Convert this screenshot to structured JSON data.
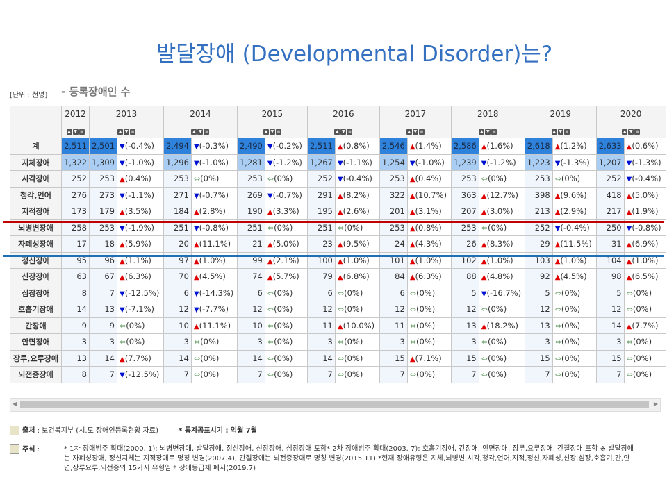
{
  "title": "발달장애 (Developmental Disorder)는?",
  "unit": "[단위 : 천명]",
  "subtitle": "- 등록장애인 수",
  "colors": {
    "title": "#3470c0",
    "total_cell": "#2f82dc",
    "sub_cell": "#a9cdf3",
    "up": "#e00000",
    "down": "#0010d0",
    "same": "#7aa87a",
    "red_line": "#c00000",
    "blue_line": "#1f6fb5"
  },
  "sort_icons": [
    "sort-up-icon",
    "sort-down-icon",
    "sort-list-icon"
  ],
  "years": [
    "2012",
    "2013",
    "2014",
    "2015",
    "2016",
    "2017",
    "2018",
    "2019",
    "2020"
  ],
  "rows": [
    {
      "label": "계",
      "values": [
        "2,511",
        "2,501",
        "2,494",
        "2,490",
        "2,511",
        "2,546",
        "2,586",
        "2,618",
        "2,633"
      ],
      "changes": [
        [
          "down",
          "(-0.4%)"
        ],
        [
          "down",
          "(-0.3%)"
        ],
        [
          "down",
          "(-0.2%)"
        ],
        [
          "up",
          "(0.8%)"
        ],
        [
          "up",
          "(1.4%)"
        ],
        [
          "up",
          "(1.6%)"
        ],
        [
          "up",
          "(1.2%)"
        ],
        [
          "up",
          "(0.6%)"
        ]
      ]
    },
    {
      "label": "지체장애",
      "values": [
        "1,322",
        "1,309",
        "1,296",
        "1,281",
        "1,267",
        "1,254",
        "1,239",
        "1,223",
        "1,207"
      ],
      "changes": [
        [
          "down",
          "(-1.0%)"
        ],
        [
          "down",
          "(-1.0%)"
        ],
        [
          "down",
          "(-1.2%)"
        ],
        [
          "down",
          "(-1.1%)"
        ],
        [
          "down",
          "(-1.0%)"
        ],
        [
          "down",
          "(-1.2%)"
        ],
        [
          "down",
          "(-1.3%)"
        ],
        [
          "down",
          "(-1.3%)"
        ]
      ]
    },
    {
      "label": "시각장애",
      "values": [
        "252",
        "253",
        "253",
        "253",
        "252",
        "253",
        "253",
        "253",
        "252"
      ],
      "changes": [
        [
          "up",
          "(0.4%)"
        ],
        [
          "same",
          "(0%)"
        ],
        [
          "same",
          "(0%)"
        ],
        [
          "down",
          "(-0.4%)"
        ],
        [
          "up",
          "(0.4%)"
        ],
        [
          "same",
          "(0%)"
        ],
        [
          "same",
          "(0%)"
        ],
        [
          "down",
          "(-0.4%)"
        ]
      ]
    },
    {
      "label": "청각,언어",
      "values": [
        "276",
        "273",
        "271",
        "269",
        "291",
        "322",
        "363",
        "398",
        "418"
      ],
      "changes": [
        [
          "down",
          "(-1.1%)"
        ],
        [
          "down",
          "(-0.7%)"
        ],
        [
          "down",
          "(-0.7%)"
        ],
        [
          "up",
          "(8.2%)"
        ],
        [
          "up",
          "(10.7%)"
        ],
        [
          "up",
          "(12.7%)"
        ],
        [
          "up",
          "(9.6%)"
        ],
        [
          "up",
          "(5.0%)"
        ]
      ]
    },
    {
      "label": "지적장애",
      "values": [
        "173",
        "179",
        "184",
        "190",
        "195",
        "201",
        "207",
        "213",
        "217"
      ],
      "changes": [
        [
          "up",
          "(3.5%)"
        ],
        [
          "up",
          "(2.8%)"
        ],
        [
          "up",
          "(3.3%)"
        ],
        [
          "up",
          "(2.6%)"
        ],
        [
          "up",
          "(3.1%)"
        ],
        [
          "up",
          "(3.0%)"
        ],
        [
          "up",
          "(2.9%)"
        ],
        [
          "up",
          "(1.9%)"
        ]
      ]
    },
    {
      "label": "뇌병변장애",
      "values": [
        "258",
        "253",
        "251",
        "251",
        "251",
        "253",
        "253",
        "252",
        "250"
      ],
      "changes": [
        [
          "down",
          "(-1.9%)"
        ],
        [
          "down",
          "(-0.8%)"
        ],
        [
          "same",
          "(0%)"
        ],
        [
          "same",
          "(0%)"
        ],
        [
          "up",
          "(0.8%)"
        ],
        [
          "same",
          "(0%)"
        ],
        [
          "down",
          "(-0.4%)"
        ],
        [
          "down",
          "(-0.8%)"
        ]
      ]
    },
    {
      "label": "자폐성장애",
      "values": [
        "17",
        "18",
        "20",
        "21",
        "23",
        "24",
        "26",
        "29",
        "31"
      ],
      "changes": [
        [
          "up",
          "(5.9%)"
        ],
        [
          "up",
          "(11.1%)"
        ],
        [
          "up",
          "(5.0%)"
        ],
        [
          "up",
          "(9.5%)"
        ],
        [
          "up",
          "(4.3%)"
        ],
        [
          "up",
          "(8.3%)"
        ],
        [
          "up",
          "(11.5%)"
        ],
        [
          "up",
          "(6.9%)"
        ]
      ]
    },
    {
      "label": "정신장애",
      "values": [
        "95",
        "96",
        "97",
        "99",
        "100",
        "101",
        "102",
        "103",
        "104"
      ],
      "changes": [
        [
          "up",
          "(1.1%)"
        ],
        [
          "up",
          "(1.0%)"
        ],
        [
          "up",
          "(2.1%)"
        ],
        [
          "up",
          "(1.0%)"
        ],
        [
          "up",
          "(1.0%)"
        ],
        [
          "up",
          "(1.0%)"
        ],
        [
          "up",
          "(1.0%)"
        ],
        [
          "up",
          "(1.0%)"
        ]
      ]
    },
    {
      "label": "신장장애",
      "values": [
        "63",
        "67",
        "70",
        "74",
        "79",
        "84",
        "88",
        "92",
        "98"
      ],
      "changes": [
        [
          "up",
          "(6.3%)"
        ],
        [
          "up",
          "(4.5%)"
        ],
        [
          "up",
          "(5.7%)"
        ],
        [
          "up",
          "(6.8%)"
        ],
        [
          "up",
          "(6.3%)"
        ],
        [
          "up",
          "(4.8%)"
        ],
        [
          "up",
          "(4.5%)"
        ],
        [
          "up",
          "(6.5%)"
        ]
      ]
    },
    {
      "label": "심장장애",
      "values": [
        "8",
        "7",
        "6",
        "6",
        "6",
        "6",
        "5",
        "5",
        "5"
      ],
      "changes": [
        [
          "down",
          "(-12.5%)"
        ],
        [
          "down",
          "(-14.3%)"
        ],
        [
          "same",
          "(0%)"
        ],
        [
          "same",
          "(0%)"
        ],
        [
          "same",
          "(0%)"
        ],
        [
          "down",
          "(-16.7%)"
        ],
        [
          "same",
          "(0%)"
        ],
        [
          "same",
          "(0%)"
        ]
      ]
    },
    {
      "label": "호흡기장애",
      "values": [
        "14",
        "13",
        "12",
        "12",
        "12",
        "12",
        "12",
        "12",
        "12"
      ],
      "changes": [
        [
          "down",
          "(-7.1%)"
        ],
        [
          "down",
          "(-7.7%)"
        ],
        [
          "same",
          "(0%)"
        ],
        [
          "same",
          "(0%)"
        ],
        [
          "same",
          "(0%)"
        ],
        [
          "same",
          "(0%)"
        ],
        [
          "same",
          "(0%)"
        ],
        [
          "same",
          "(0%)"
        ]
      ]
    },
    {
      "label": "간장애",
      "values": [
        "9",
        "9",
        "10",
        "10",
        "11",
        "11",
        "13",
        "13",
        "14"
      ],
      "changes": [
        [
          "same",
          "(0%)"
        ],
        [
          "up",
          "(11.1%)"
        ],
        [
          "same",
          "(0%)"
        ],
        [
          "up",
          "(10.0%)"
        ],
        [
          "same",
          "(0%)"
        ],
        [
          "up",
          "(18.2%)"
        ],
        [
          "same",
          "(0%)"
        ],
        [
          "up",
          "(7.7%)"
        ]
      ]
    },
    {
      "label": "안면장애",
      "values": [
        "3",
        "3",
        "3",
        "3",
        "3",
        "3",
        "3",
        "3",
        "3"
      ],
      "changes": [
        [
          "same",
          "(0%)"
        ],
        [
          "same",
          "(0%)"
        ],
        [
          "same",
          "(0%)"
        ],
        [
          "same",
          "(0%)"
        ],
        [
          "same",
          "(0%)"
        ],
        [
          "same",
          "(0%)"
        ],
        [
          "same",
          "(0%)"
        ],
        [
          "same",
          "(0%)"
        ]
      ]
    },
    {
      "label": "장루,요루장애",
      "values": [
        "13",
        "14",
        "14",
        "14",
        "14",
        "15",
        "15",
        "15",
        "15"
      ],
      "changes": [
        [
          "up",
          "(7.7%)"
        ],
        [
          "same",
          "(0%)"
        ],
        [
          "same",
          "(0%)"
        ],
        [
          "same",
          "(0%)"
        ],
        [
          "up",
          "(7.1%)"
        ],
        [
          "same",
          "(0%)"
        ],
        [
          "same",
          "(0%)"
        ],
        [
          "same",
          "(0%)"
        ]
      ]
    },
    {
      "label": "뇌전증장애",
      "values": [
        "8",
        "7",
        "7",
        "7",
        "7",
        "7",
        "7",
        "7",
        "7"
      ],
      "changes": [
        [
          "down",
          "(-12.5%)"
        ],
        [
          "same",
          "(0%)"
        ],
        [
          "same",
          "(0%)"
        ],
        [
          "same",
          "(0%)"
        ],
        [
          "same",
          "(0%)"
        ],
        [
          "same",
          "(0%)"
        ],
        [
          "same",
          "(0%)"
        ],
        [
          "same",
          "(0%)"
        ]
      ]
    }
  ],
  "footer": {
    "source_label": "출처",
    "source_text": " : 보건복지부 (시.도 장애인등록현황 자료)",
    "release": "* 통계공표시기 : 익월 7월",
    "notes_label": "주석",
    "notes_text": "* 1차 장애범주 확대(2000. 1): 뇌병변장애, 발달장애, 정신장애, 신장장애, 심장장애 포함* 2차 장애범주 확대(2003. 7): 호흡기장애, 간장애, 안면장애, 장루,요루장애, 간질장애 포함 ※ 발달장애는 자폐성장애, 정신지체는 지적장애로 명칭 변경(2007.4), 간질장애는 뇌전증장애로 명칭 변경(2015.11) *현재 장애유형은 지체,뇌병변,시각,청각,언어,지적,정신,자폐성,신장,심장,호흡기,간,안면,장루요루,뇌전증의 15가지 유형임 * 장애등급제 폐지(2019.7)"
  }
}
